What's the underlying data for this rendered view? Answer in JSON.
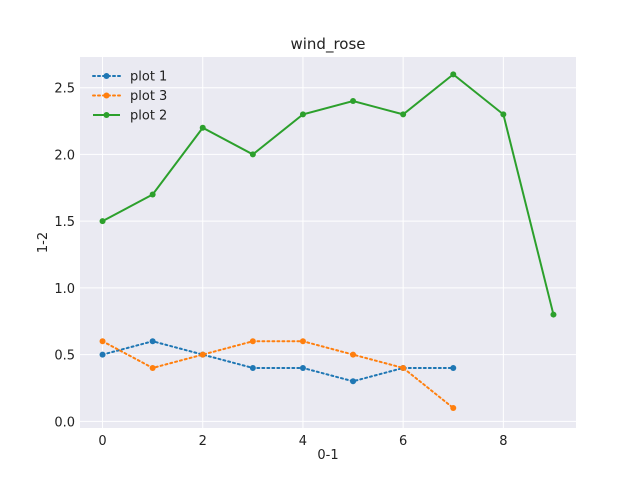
{
  "chart_data": {
    "type": "line",
    "title": "wind_rose",
    "xlabel": "0-1",
    "ylabel": "1-2",
    "xlim": [
      -0.45,
      9.45
    ],
    "ylim": [
      -0.05,
      2.73
    ],
    "xticks": [
      0,
      2,
      4,
      6,
      8
    ],
    "yticks": [
      0.0,
      0.5,
      1.0,
      1.5,
      2.0,
      2.5
    ],
    "xtick_labels": [
      "0",
      "2",
      "4",
      "6",
      "8"
    ],
    "ytick_labels": [
      "0.0",
      "0.5",
      "1.0",
      "1.5",
      "2.0",
      "2.5"
    ],
    "grid": true,
    "legend_position": "top-left",
    "background": "#eaeaf2",
    "series": [
      {
        "name": "plot 1",
        "color": "#1f77b4",
        "linestyle": "dotted",
        "x": [
          0,
          1,
          2,
          3,
          4,
          5,
          6,
          7
        ],
        "y": [
          0.5,
          0.6,
          0.5,
          0.4,
          0.4,
          0.3,
          0.4,
          0.4
        ]
      },
      {
        "name": "plot 3",
        "color": "#ff7f0e",
        "linestyle": "dotted",
        "x": [
          0,
          1,
          2,
          3,
          4,
          5,
          6,
          7
        ],
        "y": [
          0.6,
          0.4,
          0.5,
          0.6,
          0.6,
          0.5,
          0.4,
          0.1
        ]
      },
      {
        "name": "plot 2",
        "color": "#2ca02c",
        "linestyle": "solid",
        "x": [
          0,
          1,
          2,
          3,
          4,
          5,
          6,
          7,
          8,
          9
        ],
        "y": [
          1.5,
          1.7,
          2.2,
          2.0,
          2.3,
          2.4,
          2.3,
          2.6,
          2.3,
          0.8
        ]
      }
    ]
  }
}
